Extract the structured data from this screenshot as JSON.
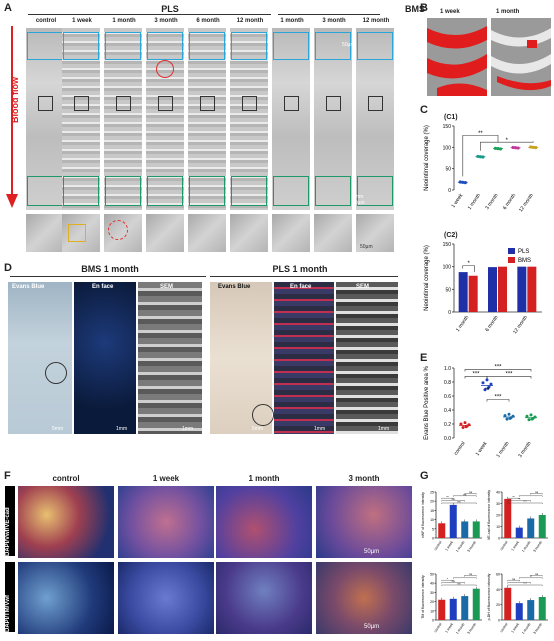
{
  "panel_letters": {
    "a": "A",
    "b": "B",
    "c": "C",
    "d": "D",
    "e": "E",
    "f": "F",
    "g": "G"
  },
  "panelA": {
    "group_pls": "PLS",
    "group_bms": "BMS",
    "blood_flow": "Blood flow",
    "columns": [
      "control",
      "1 week",
      "1 month",
      "3 month",
      "6 month",
      "12 month",
      "1 month",
      "3 month",
      "12 month"
    ],
    "scale_a": "50µm",
    "scale_b": "1mm",
    "scale_c": "50µm",
    "scale_d": "50µm"
  },
  "panelB": {
    "labels": [
      "1 week",
      "1 month"
    ]
  },
  "panelC": {
    "c1": "(C1)",
    "c2": "(C2)"
  },
  "panelD": {
    "title_bms": "BMS 1 month",
    "title_pls": "PLS 1 month",
    "labels": [
      "Evans Blue",
      "En face",
      "SEM",
      "Evans Blue",
      "En face",
      "SEM"
    ],
    "scales": [
      "5mm",
      "1mm",
      "1mm",
      "5mm",
      "1mm",
      "1mm"
    ]
  },
  "panelF": {
    "columns": [
      "control",
      "1 week",
      "1 month",
      "3 month"
    ],
    "stain_top": "DAPI/Vwf/VE-cad",
    "stain_bot": "DAPI/TM/Vwf",
    "scale_top": "50µm",
    "scale_bot": "50µm"
  },
  "chart_data": [
    {
      "id": "C1",
      "type": "scatter",
      "ylabel": "Neointimal coverage (%)",
      "categories": [
        "1 week",
        "1 month",
        "3 month",
        "6 month",
        "12 month"
      ],
      "values": [
        18,
        78,
        97,
        99,
        100
      ],
      "ylim": [
        0,
        150
      ],
      "yticks": [
        0,
        50,
        100,
        150
      ],
      "colors": [
        "#1f4fbf",
        "#1a9a8a",
        "#1aa05a",
        "#c0399a",
        "#c8a020"
      ],
      "significance": [
        "**",
        "*"
      ]
    },
    {
      "id": "C2",
      "type": "bar",
      "ylabel": "Neointimal coverage (%)",
      "categories": [
        "1 month",
        "6 month",
        "12 month"
      ],
      "series": [
        {
          "name": "PLS",
          "values": [
            88,
            99,
            100
          ],
          "color": "#1e2fa8"
        },
        {
          "name": "BMS",
          "values": [
            80,
            100,
            100
          ],
          "color": "#d42020"
        }
      ],
      "ylim": [
        0,
        150
      ],
      "yticks": [
        0,
        50,
        100,
        150
      ],
      "significance": [
        "*"
      ],
      "legend": "top-right"
    },
    {
      "id": "E",
      "type": "scatter",
      "ylabel": "Evans Blue Positive area %",
      "categories": [
        "control",
        "1 week",
        "1 month",
        "3 month"
      ],
      "values": [
        0.18,
        0.75,
        0.3,
        0.29
      ],
      "ylim": [
        0,
        1.0
      ],
      "yticks": [
        0,
        0.2,
        0.4,
        0.6,
        0.8,
        1.0
      ],
      "colors": [
        "#d42020",
        "#1e3fbf",
        "#1a6aa8",
        "#1a9a55"
      ],
      "significance": [
        "***",
        "***",
        "***",
        "***",
        "**"
      ]
    },
    {
      "id": "G1",
      "type": "bar",
      "ylabel": "vWF of fluorescence intensity",
      "categories": [
        "control",
        "1 week",
        "1 month",
        "3 month"
      ],
      "values": [
        8,
        18,
        9,
        9
      ],
      "ylim": [
        0,
        25
      ],
      "yticks": [
        0,
        5,
        10,
        15,
        20,
        25
      ],
      "colors": [
        "#d42020",
        "#1e3fbf",
        "#1a6aa8",
        "#1a9a55"
      ],
      "significance": [
        "ns",
        "ns",
        "**",
        "ns",
        "ns"
      ]
    },
    {
      "id": "G2",
      "type": "bar",
      "ylabel": "VE-cad of fluorescence intensity",
      "categories": [
        "control",
        "1 week",
        "1 month",
        "3 month"
      ],
      "values": [
        34,
        9,
        17,
        20
      ],
      "ylim": [
        0,
        40
      ],
      "yticks": [
        0,
        10,
        20,
        30,
        40
      ],
      "colors": [
        "#d42020",
        "#1e3fbf",
        "#1a6aa8",
        "#1a9a55"
      ],
      "significance": [
        "***",
        "**",
        "**",
        "*",
        "ns"
      ]
    },
    {
      "id": "G3",
      "type": "bar",
      "ylabel": "TM of fluorescence intensity",
      "categories": [
        "control",
        "1 week",
        "1 month",
        "3 month"
      ],
      "values": [
        22,
        23,
        26,
        34
      ],
      "ylim": [
        0,
        50
      ],
      "yticks": [
        0,
        10,
        20,
        30,
        40,
        50
      ],
      "colors": [
        "#d42020",
        "#1e3fbf",
        "#1a6aa8",
        "#1a9a55"
      ],
      "significance": [
        "ns",
        "ns",
        "*",
        "*",
        "ns"
      ]
    },
    {
      "id": "G4",
      "type": "bar",
      "ylabel": "p-DH of fluorescence intensity",
      "categories": [
        "control",
        "1 week",
        "1 month",
        "3 month"
      ],
      "values": [
        42,
        22,
        26,
        30
      ],
      "ylim": [
        0,
        60
      ],
      "yticks": [
        0,
        20,
        40,
        60
      ],
      "colors": [
        "#d42020",
        "#1e3fbf",
        "#1a6aa8",
        "#1a9a55"
      ],
      "significance": [
        "***",
        "*",
        "ns",
        "**",
        "ns"
      ]
    }
  ]
}
